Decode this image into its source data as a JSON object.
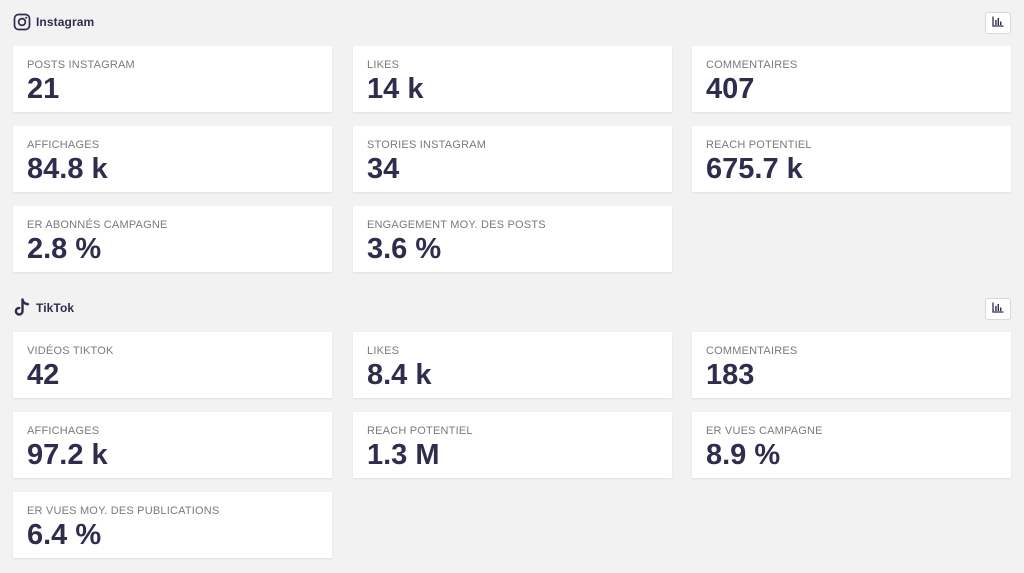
{
  "sections": [
    {
      "platform": "Instagram",
      "icon": "instagram-icon",
      "chart_button_icon": "bar-chart-icon",
      "cards": [
        {
          "label": "POSTS INSTAGRAM",
          "value": "21"
        },
        {
          "label": "LIKES",
          "value": "14 k"
        },
        {
          "label": "COMMENTAIRES",
          "value": "407"
        },
        {
          "label": "AFFICHAGES",
          "value": "84.8 k"
        },
        {
          "label": "STORIES INSTAGRAM",
          "value": "34"
        },
        {
          "label": "REACH POTENTIEL",
          "value": "675.7 k"
        },
        {
          "label": "ER ABONNÉS CAMPAGNE",
          "value": "2.8 %"
        },
        {
          "label": "ENGAGEMENT MOY. DES POSTS",
          "value": "3.6 %"
        }
      ]
    },
    {
      "platform": "TikTok",
      "icon": "tiktok-icon",
      "chart_button_icon": "bar-chart-icon",
      "cards": [
        {
          "label": "VIDÉOS TIKTOK",
          "value": "42"
        },
        {
          "label": "LIKES",
          "value": "8.4 k"
        },
        {
          "label": "COMMENTAIRES",
          "value": "183"
        },
        {
          "label": "AFFICHAGES",
          "value": "97.2 k"
        },
        {
          "label": "REACH POTENTIEL",
          "value": "1.3 M"
        },
        {
          "label": "ER VUES CAMPAGNE",
          "value": "8.9 %"
        },
        {
          "label": "ER VUES MOY. DES PUBLICATIONS",
          "value": "6.4 %"
        }
      ]
    }
  ],
  "colors": {
    "background": "#f2f2f2",
    "card": "#ffffff",
    "value_text": "#2f2d4e",
    "label_text": "#7a7a7a"
  }
}
